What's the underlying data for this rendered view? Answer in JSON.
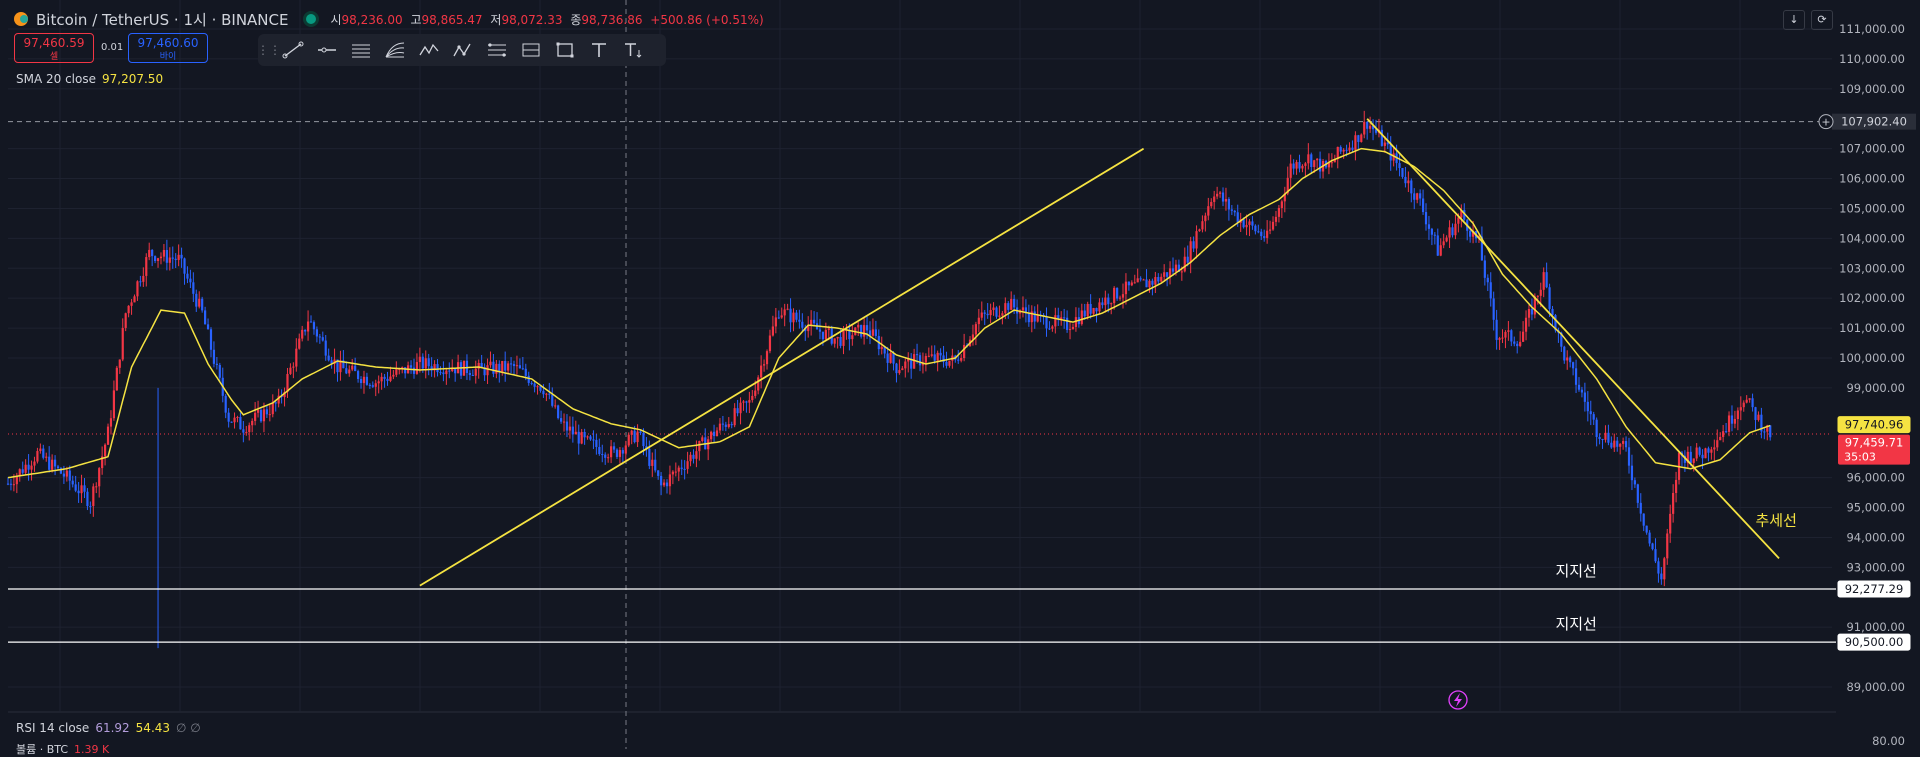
{
  "header": {
    "symbol": "Bitcoin / TetherUS · 1시 · BINANCE",
    "open_label": "시",
    "open": "98,236.00",
    "high_label": "고",
    "high": "98,865.47",
    "low_label": "저",
    "low": "98,072.33",
    "close_label": "종",
    "close": "98,736.86",
    "change": "+500.86 (+0.51%)"
  },
  "trade": {
    "sell_price": "97,460.59",
    "sell_label": "셀",
    "spread": "0.01",
    "buy_price": "97,460.60",
    "buy_label": "바이"
  },
  "indicators": {
    "sma_label": "SMA 20 close",
    "sma_value": "97,207.50",
    "rsi_label": "RSI 14 close",
    "rsi_value": "61.92",
    "rsi_ma": "54.43",
    "rsi_extra": "∅ ∅",
    "volume_label": "볼륨 · BTC",
    "volume_value": "1.39 K"
  },
  "colors": {
    "background": "#131722",
    "up": "#f23645",
    "down": "#2962ff",
    "sma": "#f5e342",
    "trend": "#f5e342",
    "support": "#ffffff"
  },
  "toolbar": [
    "grip-icon",
    "trendline-icon",
    "horizontal-ray-icon",
    "parallel-channel-icon",
    "fib-fan-icon",
    "pattern-icon",
    "abcd-pattern-icon",
    "gann-box-icon",
    "range-icon",
    "rectangle-icon",
    "text-icon",
    "text-anchored-icon"
  ],
  "chart_data": {
    "type": "candlestick",
    "y_axis_ticks": [
      "111,000.00",
      "110,000.00",
      "109,000.00",
      "107,000.00",
      "106,000.00",
      "105,000.00",
      "104,000.00",
      "103,000.00",
      "102,000.00",
      "101,000.00",
      "100,000.00",
      "99,000.00",
      "96,000.00",
      "95,000.00",
      "94,000.00",
      "93,000.00",
      "91,000.00",
      "89,000.00"
    ],
    "ylim": [
      88800,
      111300
    ],
    "rsi_scale_label": "80.00",
    "price_labels": {
      "crosshair": "107,902.40",
      "sma_current": "97,740.96",
      "last_price": "97,459.71",
      "countdown": "35:03",
      "support_1": "92,277.29",
      "support_2": "90,500.00"
    },
    "close_path": [
      [
        0,
        95800
      ],
      [
        10,
        96800
      ],
      [
        20,
        96000
      ],
      [
        28,
        95200
      ],
      [
        34,
        97500
      ],
      [
        40,
        101500
      ],
      [
        48,
        103500
      ],
      [
        58,
        103300
      ],
      [
        66,
        101500
      ],
      [
        75,
        98000
      ],
      [
        80,
        97700
      ],
      [
        92,
        98500
      ],
      [
        102,
        101300
      ],
      [
        112,
        99700
      ],
      [
        125,
        99200
      ],
      [
        140,
        99800
      ],
      [
        160,
        99600
      ],
      [
        172,
        99700
      ],
      [
        182,
        99000
      ],
      [
        188,
        97800
      ],
      [
        196,
        97200
      ],
      [
        206,
        96800
      ],
      [
        214,
        97500
      ],
      [
        222,
        95700
      ],
      [
        230,
        96500
      ],
      [
        240,
        97500
      ],
      [
        252,
        98500
      ],
      [
        262,
        101600
      ],
      [
        272,
        101100
      ],
      [
        282,
        100600
      ],
      [
        292,
        101000
      ],
      [
        302,
        99700
      ],
      [
        312,
        100000
      ],
      [
        322,
        99900
      ],
      [
        330,
        101300
      ],
      [
        340,
        101800
      ],
      [
        350,
        101300
      ],
      [
        360,
        101100
      ],
      [
        370,
        101800
      ],
      [
        380,
        102300
      ],
      [
        390,
        102600
      ],
      [
        400,
        103200
      ],
      [
        410,
        105600
      ],
      [
        418,
        104700
      ],
      [
        428,
        104000
      ],
      [
        432,
        105000
      ],
      [
        436,
        106400
      ],
      [
        442,
        106700
      ],
      [
        448,
        106300
      ],
      [
        452,
        106800
      ],
      [
        458,
        107300
      ],
      [
        462,
        107900
      ],
      [
        466,
        107400
      ],
      [
        472,
        106500
      ],
      [
        480,
        105200
      ],
      [
        486,
        103600
      ],
      [
        494,
        104800
      ],
      [
        500,
        103800
      ],
      [
        506,
        100800
      ],
      [
        514,
        100600
      ],
      [
        522,
        102700
      ],
      [
        528,
        100300
      ],
      [
        534,
        99000
      ],
      [
        540,
        97600
      ],
      [
        550,
        96900
      ],
      [
        558,
        93800
      ],
      [
        562,
        92600
      ],
      [
        568,
        96700
      ],
      [
        576,
        96800
      ],
      [
        584,
        97700
      ],
      [
        590,
        98700
      ],
      [
        596,
        97800
      ],
      [
        599,
        97460
      ]
    ],
    "sma_path": [
      [
        0,
        96000
      ],
      [
        20,
        96300
      ],
      [
        34,
        96700
      ],
      [
        42,
        99700
      ],
      [
        52,
        101600
      ],
      [
        60,
        101500
      ],
      [
        68,
        99800
      ],
      [
        76,
        98600
      ],
      [
        80,
        98100
      ],
      [
        90,
        98500
      ],
      [
        100,
        99300
      ],
      [
        112,
        99900
      ],
      [
        125,
        99700
      ],
      [
        140,
        99600
      ],
      [
        160,
        99700
      ],
      [
        178,
        99300
      ],
      [
        192,
        98300
      ],
      [
        205,
        97800
      ],
      [
        215,
        97600
      ],
      [
        228,
        97000
      ],
      [
        242,
        97200
      ],
      [
        252,
        97700
      ],
      [
        262,
        100000
      ],
      [
        272,
        101100
      ],
      [
        282,
        101000
      ],
      [
        292,
        100800
      ],
      [
        302,
        100100
      ],
      [
        312,
        99800
      ],
      [
        322,
        100000
      ],
      [
        332,
        101000
      ],
      [
        342,
        101600
      ],
      [
        352,
        101400
      ],
      [
        362,
        101200
      ],
      [
        372,
        101500
      ],
      [
        382,
        102000
      ],
      [
        392,
        102500
      ],
      [
        402,
        103200
      ],
      [
        412,
        104100
      ],
      [
        422,
        104800
      ],
      [
        432,
        105300
      ],
      [
        440,
        106000
      ],
      [
        450,
        106600
      ],
      [
        460,
        107000
      ],
      [
        468,
        106900
      ],
      [
        478,
        106400
      ],
      [
        488,
        105600
      ],
      [
        498,
        104500
      ],
      [
        508,
        102800
      ],
      [
        518,
        101700
      ],
      [
        528,
        100800
      ],
      [
        540,
        99300
      ],
      [
        550,
        97700
      ],
      [
        560,
        96500
      ],
      [
        572,
        96300
      ],
      [
        582,
        96600
      ],
      [
        592,
        97500
      ],
      [
        599,
        97740
      ]
    ],
    "trendlines": [
      {
        "name": "uptrend",
        "from": [
          140,
          92390
        ],
        "to": [
          386,
          107000
        ]
      },
      {
        "name": "downtrend",
        "from": [
          462,
          108000
        ],
        "to": [
          602,
          93300
        ]
      }
    ],
    "support_lines": [
      {
        "label": "지지선",
        "value": 92277.29
      },
      {
        "label": "지지선",
        "value": 90500.0
      }
    ],
    "trend_label": "추세선",
    "annotation_positions": {
      "trend_label_x": 594,
      "trend_label_value": 94400,
      "support_label_x": 526
    }
  }
}
